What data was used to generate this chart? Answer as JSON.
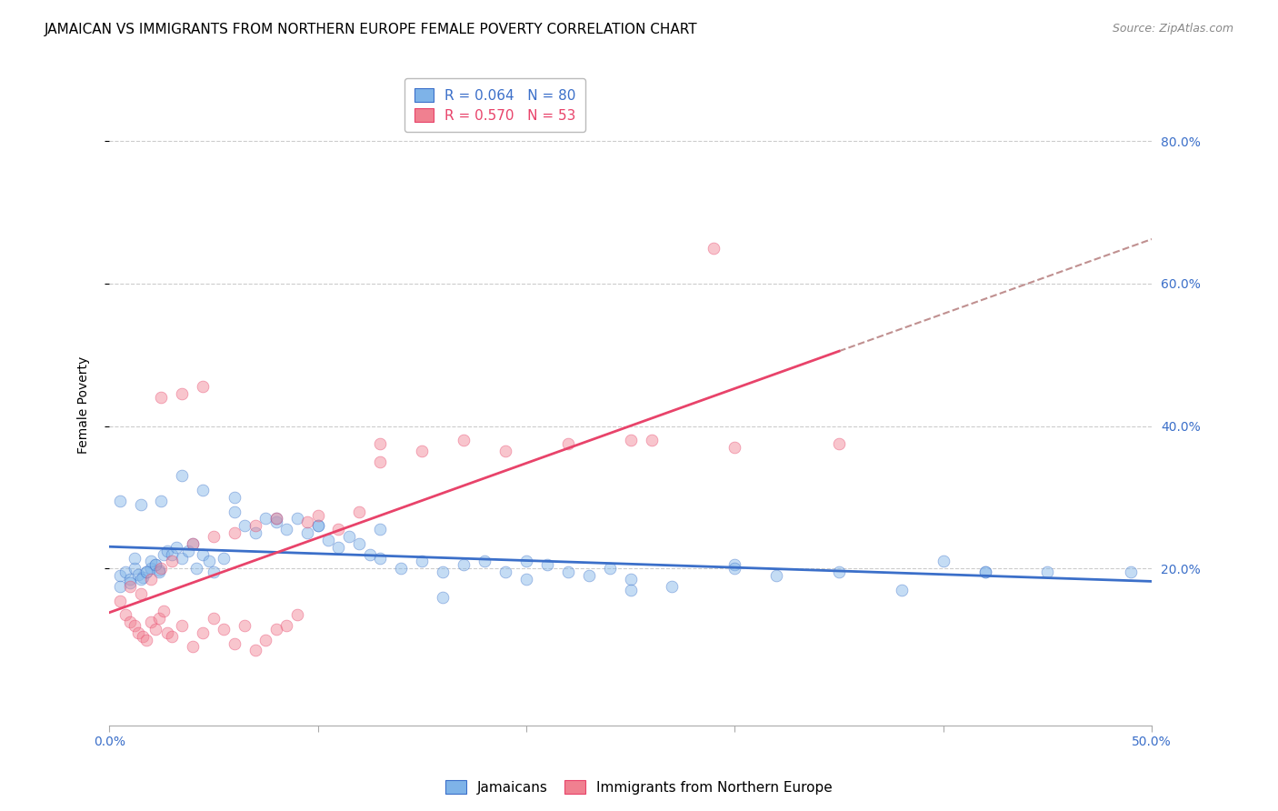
{
  "title": "JAMAICAN VS IMMIGRANTS FROM NORTHERN EUROPE FEMALE POVERTY CORRELATION CHART",
  "source": "Source: ZipAtlas.com",
  "ylabel": "Female Poverty",
  "right_yticks": [
    "80.0%",
    "60.0%",
    "40.0%",
    "20.0%"
  ],
  "right_ytick_vals": [
    0.8,
    0.6,
    0.4,
    0.2
  ],
  "xlim": [
    0.0,
    0.5
  ],
  "ylim": [
    -0.02,
    0.88
  ],
  "legend_r1": "R = 0.064",
  "legend_n1": "N = 80",
  "legend_r2": "R = 0.570",
  "legend_n2": "N = 53",
  "legend_color1": "#7EB3E8",
  "legend_color2": "#F08090",
  "blue_line_color": "#3B6FC9",
  "pink_line_color": "#E8436A",
  "pink_dashed_color": "#C09090",
  "background_color": "#FFFFFF",
  "grid_color": "#CCCCCC",
  "scatter_size": 85,
  "scatter_alpha": 0.45,
  "title_fontsize": 11,
  "axis_label_fontsize": 10,
  "tick_label_fontsize": 10,
  "legend_fontsize": 11,
  "source_fontsize": 9,
  "blue_R": 0.064,
  "blue_N": 80,
  "pink_R": 0.57,
  "pink_N": 53,
  "blue_scatter_x": [
    0.005,
    0.008,
    0.01,
    0.012,
    0.014,
    0.016,
    0.018,
    0.02,
    0.022,
    0.024,
    0.005,
    0.01,
    0.012,
    0.015,
    0.018,
    0.02,
    0.022,
    0.024,
    0.026,
    0.028,
    0.03,
    0.032,
    0.035,
    0.038,
    0.04,
    0.042,
    0.045,
    0.048,
    0.05,
    0.055,
    0.06,
    0.065,
    0.07,
    0.075,
    0.08,
    0.085,
    0.09,
    0.095,
    0.1,
    0.105,
    0.11,
    0.115,
    0.12,
    0.125,
    0.13,
    0.14,
    0.15,
    0.16,
    0.17,
    0.18,
    0.19,
    0.2,
    0.21,
    0.22,
    0.23,
    0.24,
    0.25,
    0.27,
    0.3,
    0.32,
    0.35,
    0.38,
    0.4,
    0.42,
    0.45,
    0.005,
    0.015,
    0.025,
    0.035,
    0.045,
    0.06,
    0.08,
    0.1,
    0.13,
    0.16,
    0.2,
    0.25,
    0.3,
    0.42,
    0.49
  ],
  "blue_scatter_y": [
    0.19,
    0.195,
    0.185,
    0.2,
    0.192,
    0.188,
    0.195,
    0.2,
    0.205,
    0.198,
    0.175,
    0.18,
    0.215,
    0.185,
    0.195,
    0.21,
    0.205,
    0.195,
    0.22,
    0.225,
    0.22,
    0.23,
    0.215,
    0.225,
    0.235,
    0.2,
    0.22,
    0.21,
    0.195,
    0.215,
    0.28,
    0.26,
    0.25,
    0.27,
    0.265,
    0.255,
    0.27,
    0.25,
    0.26,
    0.24,
    0.23,
    0.245,
    0.235,
    0.22,
    0.215,
    0.2,
    0.21,
    0.195,
    0.205,
    0.21,
    0.195,
    0.185,
    0.205,
    0.195,
    0.19,
    0.2,
    0.185,
    0.175,
    0.205,
    0.19,
    0.195,
    0.17,
    0.21,
    0.195,
    0.195,
    0.295,
    0.29,
    0.295,
    0.33,
    0.31,
    0.3,
    0.27,
    0.26,
    0.255,
    0.16,
    0.21,
    0.17,
    0.2,
    0.195,
    0.195
  ],
  "pink_scatter_x": [
    0.005,
    0.008,
    0.01,
    0.012,
    0.014,
    0.016,
    0.018,
    0.02,
    0.022,
    0.024,
    0.026,
    0.028,
    0.03,
    0.035,
    0.04,
    0.045,
    0.05,
    0.055,
    0.06,
    0.065,
    0.07,
    0.075,
    0.08,
    0.085,
    0.09,
    0.01,
    0.015,
    0.02,
    0.025,
    0.03,
    0.04,
    0.05,
    0.06,
    0.07,
    0.08,
    0.095,
    0.1,
    0.11,
    0.12,
    0.13,
    0.15,
    0.17,
    0.19,
    0.22,
    0.25,
    0.3,
    0.35,
    0.025,
    0.035,
    0.045,
    0.13,
    0.26,
    0.29
  ],
  "pink_scatter_y": [
    0.155,
    0.135,
    0.125,
    0.12,
    0.11,
    0.105,
    0.1,
    0.125,
    0.115,
    0.13,
    0.14,
    0.11,
    0.105,
    0.12,
    0.09,
    0.11,
    0.13,
    0.115,
    0.095,
    0.12,
    0.085,
    0.1,
    0.115,
    0.12,
    0.135,
    0.175,
    0.165,
    0.185,
    0.2,
    0.21,
    0.235,
    0.245,
    0.25,
    0.26,
    0.27,
    0.265,
    0.275,
    0.255,
    0.28,
    0.35,
    0.365,
    0.38,
    0.365,
    0.375,
    0.38,
    0.37,
    0.375,
    0.44,
    0.445,
    0.455,
    0.375,
    0.38,
    0.65
  ]
}
